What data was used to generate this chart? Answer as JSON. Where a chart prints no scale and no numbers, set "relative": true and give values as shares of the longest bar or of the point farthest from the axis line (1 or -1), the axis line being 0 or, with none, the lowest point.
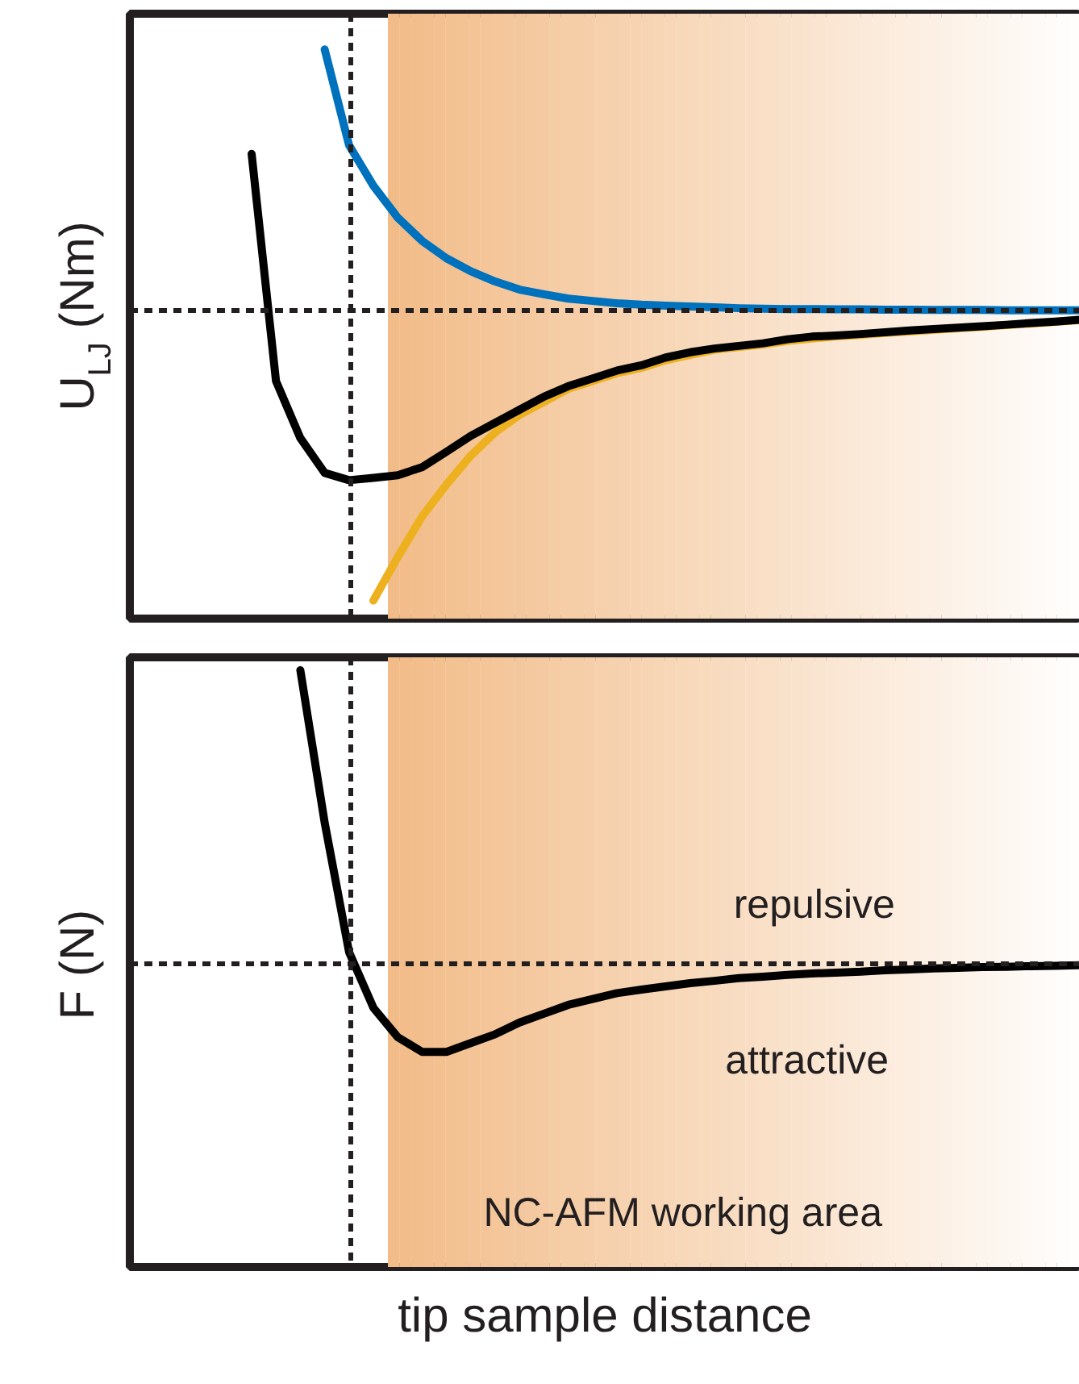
{
  "chart_data": [
    {
      "type": "line",
      "ylabel": "U$_{LJ}$ (Nm)",
      "relative": true,
      "categories": [
        null,
        null,
        null,
        null,
        null,
        null,
        null,
        null,
        null,
        null,
        null,
        null,
        null,
        null,
        null,
        null,
        null,
        null,
        null,
        null,
        null,
        null,
        null,
        null,
        null,
        null,
        null,
        null,
        null,
        null,
        null,
        null,
        null,
        null,
        null,
        null,
        null,
        null,
        null,
        null
      ],
      "series": [
        {
          "color": "#0072bd",
          "values": [
            null,
            null,
            null,
            null,
            null,
            null,
            null,
            null,
            0.9,
            0.57,
            0.43,
            0.32,
            0.24,
            0.18,
            0.135,
            0.1,
            0.072,
            0.056,
            0.041,
            0.033,
            0.025,
            0.02,
            0.017,
            0.014,
            0.011,
            0.008,
            0.006,
            0.005,
            0.005,
            0.004,
            0.004,
            0.003,
            0.003,
            0.002,
            0.002,
            0.002,
            0.001,
            0.001,
            0.001,
            0.001
          ]
        },
        {
          "color": "#edb120",
          "values": [
            null,
            null,
            null,
            null,
            null,
            null,
            null,
            null,
            null,
            null,
            -1.0,
            -0.85,
            -0.71,
            -0.6,
            -0.5,
            -0.42,
            -0.36,
            -0.315,
            -0.27,
            -0.243,
            -0.216,
            -0.198,
            -0.171,
            -0.153,
            -0.135,
            -0.126,
            -0.117,
            -0.105,
            -0.097,
            -0.089,
            -0.084,
            -0.077,
            -0.072,
            -0.067,
            -0.061,
            -0.056,
            -0.05,
            -0.045,
            -0.039,
            -0.033
          ]
        },
        {
          "color": "#000000",
          "values": [
            null,
            null,
            null,
            null,
            null,
            0.54,
            -0.243,
            -0.44,
            -0.56,
            -0.585,
            -0.577,
            -0.568,
            -0.54,
            -0.487,
            -0.432,
            -0.387,
            -0.342,
            -0.297,
            -0.261,
            -0.234,
            -0.207,
            -0.189,
            -0.162,
            -0.144,
            -0.131,
            -0.122,
            -0.113,
            -0.099,
            -0.09,
            -0.086,
            -0.081,
            -0.075,
            -0.069,
            -0.064,
            -0.059,
            -0.054,
            -0.049,
            -0.043,
            -0.038,
            -0.032
          ]
        }
      ],
      "ref_lines": [
        {
          "axis": "y",
          "value": 0,
          "color": "#231f20",
          "line_style": "dashed"
        }
      ]
    },
    {
      "type": "line",
      "ylabel": "F (N)",
      "xlabel": "tip sample distance",
      "relative": true,
      "categories": [
        null,
        null,
        null,
        null,
        null,
        null,
        null,
        null,
        null,
        null,
        null,
        null,
        null,
        null,
        null,
        null,
        null,
        null,
        null,
        null,
        null,
        null,
        null,
        null,
        null,
        null,
        null,
        null,
        null,
        null,
        null,
        null,
        null,
        null,
        null,
        null,
        null,
        null,
        null,
        null
      ],
      "series": [
        {
          "color": "#000000",
          "values": [
            null,
            null,
            null,
            null,
            null,
            null,
            null,
            1.0,
            0.48,
            0.04,
            -0.15,
            -0.25,
            -0.3,
            -0.3,
            -0.27,
            -0.24,
            -0.2,
            -0.17,
            -0.14,
            -0.12,
            -0.1,
            -0.088,
            -0.077,
            -0.066,
            -0.058,
            -0.049,
            -0.044,
            -0.038,
            -0.033,
            -0.03,
            -0.027,
            -0.022,
            -0.019,
            -0.016,
            -0.014,
            -0.011,
            -0.01,
            -0.008,
            -0.007,
            -0.005
          ]
        }
      ],
      "ref_lines": [
        {
          "axis": "y",
          "value": 0,
          "color": "#231f20",
          "line_style": "dashed"
        }
      ],
      "annotations": [
        "repulsive",
        "attractive",
        "NC-AFM working area"
      ]
    }
  ]
}
